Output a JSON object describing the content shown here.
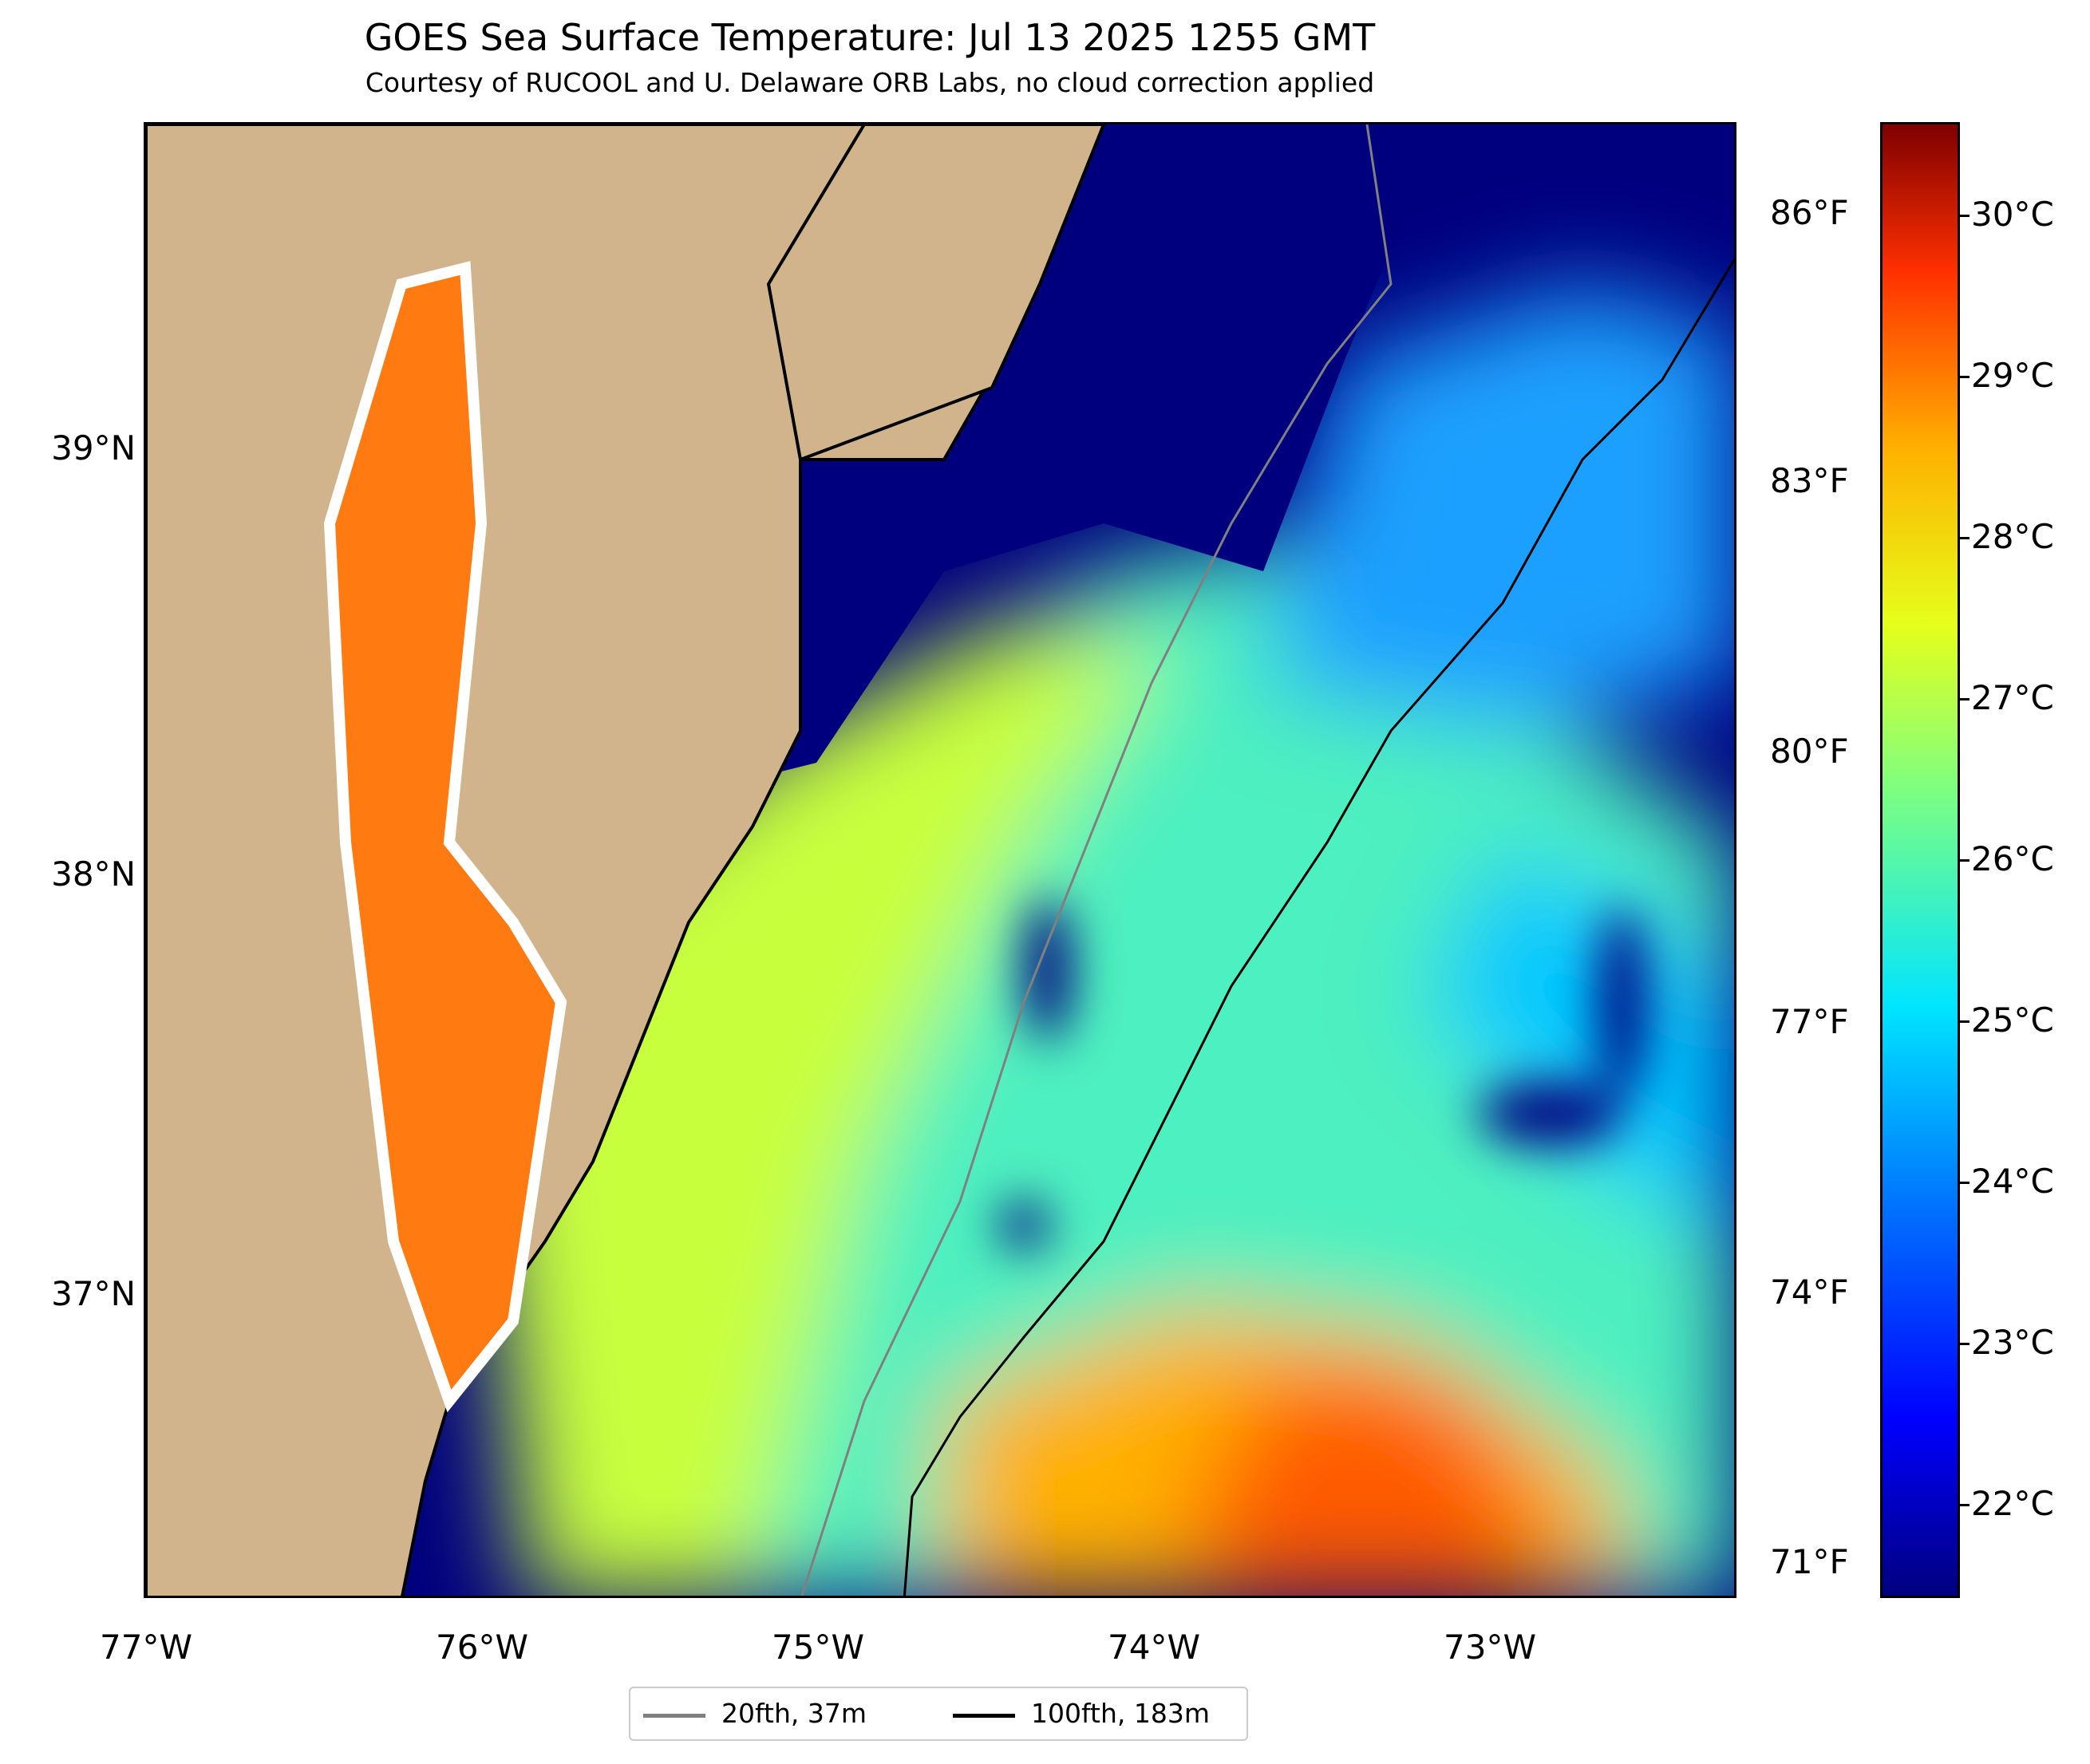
{
  "title": "GOES Sea Surface Temperature: Jul 13 2025 1255 GMT",
  "subtitle": "Courtesy of RUCOOL and U. Delaware ORB Labs, no cloud correction applied",
  "axes": {
    "lon_labels": [
      "77°W",
      "76°W",
      "75°W",
      "74°W",
      "73°W"
    ],
    "lat_labels": [
      "39°N",
      "38°N",
      "37°N"
    ],
    "f_labels": [
      "86°F",
      "83°F",
      "80°F",
      "77°F",
      "74°F",
      "71°F"
    ]
  },
  "colorbar": {
    "labels": [
      "30°C",
      "29°C",
      "28°C",
      "27°C",
      "26°C",
      "25°C",
      "24°C",
      "23°C",
      "22°C"
    ],
    "colormap": "jet"
  },
  "legend": {
    "items": [
      {
        "label": "20fth, 37m",
        "color": "#808080"
      },
      {
        "label": "100fth, 183m",
        "color": "#000000"
      }
    ]
  },
  "colors": {
    "land": "#d2b48c",
    "cloud": "#00007f",
    "isobath_20": "#808080",
    "isobath_100": "#000000"
  }
}
